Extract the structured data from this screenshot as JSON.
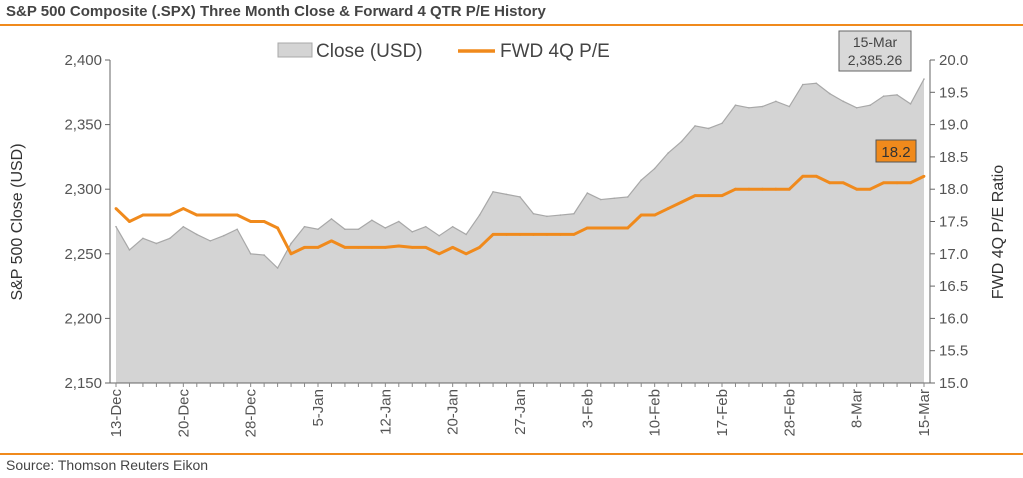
{
  "header": {
    "title": "S&P 500 Composite (.SPX) Three Month Close & Forward 4 QTR P/E History"
  },
  "footer": {
    "source": "Source: Thomson Reuters Eikon"
  },
  "colors": {
    "accent": "#f08a1c",
    "area_fill": "#d4d4d4",
    "area_stroke": "#a8a8a8",
    "pe_line": "#f08a1c"
  },
  "chart_data": {
    "type": "area",
    "title": "S&P 500 Composite (.SPX) Three Month Close & Forward 4 QTR P/E History",
    "ylabel": "S&P 500 Close (USD)",
    "y2label": "FWD 4Q P/E Ratio",
    "ylim": [
      2150,
      2400
    ],
    "y2lim": [
      15.0,
      20.0
    ],
    "yticks": [
      "2,150",
      "2,200",
      "2,250",
      "2,300",
      "2,350",
      "2,400"
    ],
    "y2ticks": [
      "15.0",
      "15.5",
      "16.0",
      "16.5",
      "17.0",
      "17.5",
      "18.0",
      "18.5",
      "19.0",
      "19.5",
      "20.0"
    ],
    "xticks": [
      {
        "label": "13-Dec",
        "index": 0
      },
      {
        "label": "20-Dec",
        "index": 5
      },
      {
        "label": "28-Dec",
        "index": 10
      },
      {
        "label": "5-Jan",
        "index": 15
      },
      {
        "label": "12-Jan",
        "index": 20
      },
      {
        "label": "20-Jan",
        "index": 25
      },
      {
        "label": "27-Jan",
        "index": 30
      },
      {
        "label": "3-Feb",
        "index": 35
      },
      {
        "label": "10-Feb",
        "index": 40
      },
      {
        "label": "17-Feb",
        "index": 45
      },
      {
        "label": "28-Feb",
        "index": 50
      },
      {
        "label": "8-Mar",
        "index": 55
      },
      {
        "label": "15-Mar",
        "index": 60
      }
    ],
    "grid": false,
    "legend": "top-center",
    "series": [
      {
        "name": "Close (USD)",
        "type": "area",
        "axis": "left",
        "values": [
          2271,
          2253,
          2262,
          2258,
          2262,
          2271,
          2265,
          2260,
          2264,
          2269,
          2250,
          2249,
          2239,
          2258,
          2271,
          2269,
          2277,
          2269,
          2269,
          2276,
          2270,
          2275,
          2267,
          2271,
          2264,
          2271,
          2265,
          2280,
          2298,
          2296,
          2294,
          2281,
          2279,
          2280,
          2281,
          2297,
          2292,
          2293,
          2294,
          2307,
          2316,
          2328,
          2337,
          2349,
          2347,
          2351,
          2365,
          2363,
          2364,
          2368,
          2364,
          2381,
          2382,
          2374,
          2368,
          2363,
          2365,
          2372,
          2373,
          2366,
          2385.26
        ]
      },
      {
        "name": "FWD 4Q P/E",
        "type": "line",
        "axis": "right",
        "values": [
          17.7,
          17.5,
          17.6,
          17.6,
          17.6,
          17.7,
          17.6,
          17.6,
          17.6,
          17.6,
          17.5,
          17.5,
          17.4,
          17.0,
          17.1,
          17.1,
          17.2,
          17.1,
          17.1,
          17.1,
          17.1,
          17.12,
          17.1,
          17.1,
          17.0,
          17.1,
          17.0,
          17.1,
          17.3,
          17.3,
          17.3,
          17.3,
          17.3,
          17.3,
          17.3,
          17.4,
          17.4,
          17.4,
          17.4,
          17.6,
          17.6,
          17.7,
          17.8,
          17.9,
          17.9,
          17.9,
          18.0,
          18.0,
          18.0,
          18.0,
          18.0,
          18.2,
          18.2,
          18.1,
          18.1,
          18.0,
          18.0,
          18.1,
          18.1,
          18.1,
          18.2
        ]
      }
    ],
    "annotations": {
      "close_date": "15-Mar",
      "close_value": "2,385.26",
      "pe_value": "18.2"
    }
  }
}
